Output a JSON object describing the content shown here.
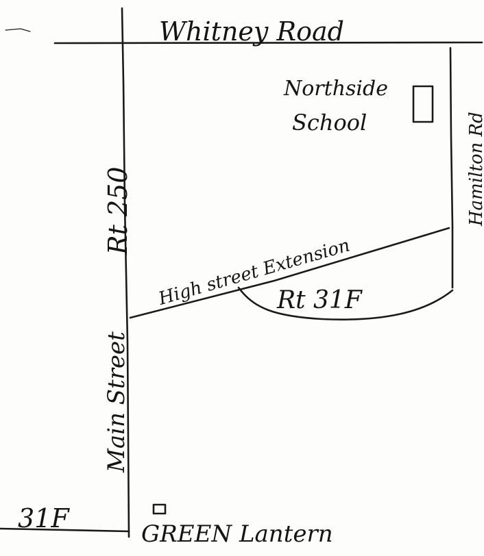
{
  "map": {
    "roads": {
      "whitney_road": "Whitney Road",
      "hamilton_rd": "Hamilton Rd",
      "rt_250": "Rt 250",
      "main_street": "Main Street",
      "highstreet_extension": "High street Extension",
      "rt_31f": "Rt 31F",
      "left_31f": "31F"
    },
    "places": {
      "school_line1": "Northside",
      "school_line2": "School",
      "green_lantern": "GREEN Lantern"
    },
    "colors": {
      "ink": "#1a1a1a",
      "paper": "#fdfdfb"
    }
  }
}
